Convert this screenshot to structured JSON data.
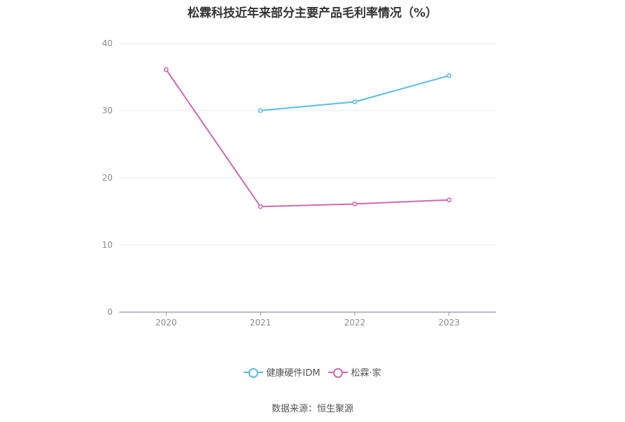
{
  "chart_data": {
    "type": "line",
    "title": "松霖科技近年来部分主要产品毛利率情况（%）",
    "categories": [
      "2020",
      "2021",
      "2022",
      "2023"
    ],
    "ylim": [
      0,
      40
    ],
    "yticks": [
      "0",
      "10",
      "20",
      "30",
      "40"
    ],
    "grid": true,
    "legend_position": "bottom",
    "series": [
      {
        "name": "健康硬件IDM",
        "color": "#5bbce4",
        "values": [
          null,
          30.0,
          31.3,
          35.2
        ]
      },
      {
        "name": "松霖·家",
        "color": "#cc6aae",
        "values": [
          36.1,
          15.7,
          16.1,
          16.7
        ]
      }
    ]
  },
  "source": "数据来源：恒生聚源"
}
